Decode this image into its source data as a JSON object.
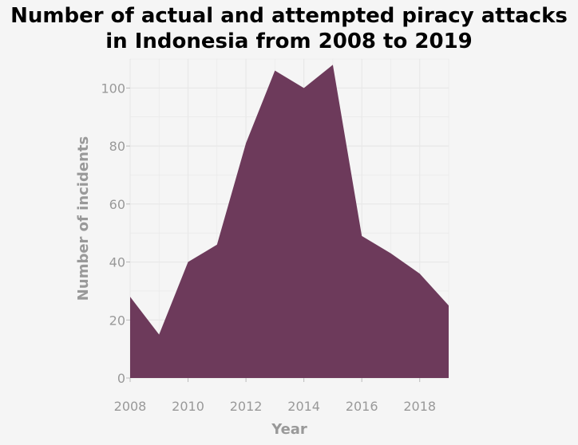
{
  "chart_data": {
    "type": "area",
    "title_line1": "Number of actual and attempted piracy attacks",
    "title_line2": "in Indonesia from 2008 to 2019",
    "xlabel": "Year",
    "ylabel": "Number of incidents",
    "x": [
      2008,
      2009,
      2010,
      2011,
      2012,
      2013,
      2014,
      2015,
      2016,
      2017,
      2018,
      2019
    ],
    "values": [
      28,
      15,
      40,
      46,
      81,
      106,
      100,
      108,
      49,
      43,
      36,
      25
    ],
    "xlim": [
      2008,
      2019
    ],
    "ylim": [
      0,
      110
    ],
    "x_ticks": [
      2008,
      2010,
      2012,
      2014,
      2016,
      2018
    ],
    "x_tick_labels": [
      "2008",
      "2010",
      "2012",
      "2014",
      "2016",
      "2018"
    ],
    "y_ticks": [
      0,
      20,
      40,
      60,
      80,
      100
    ],
    "y_tick_labels": [
      "0",
      "20",
      "40",
      "60",
      "80",
      "100"
    ],
    "grid": true,
    "colors": {
      "area": "#6d3a5b",
      "panel": "#f5f5f5",
      "grid": "#e8e8e8",
      "axis_text": "#999999"
    }
  }
}
